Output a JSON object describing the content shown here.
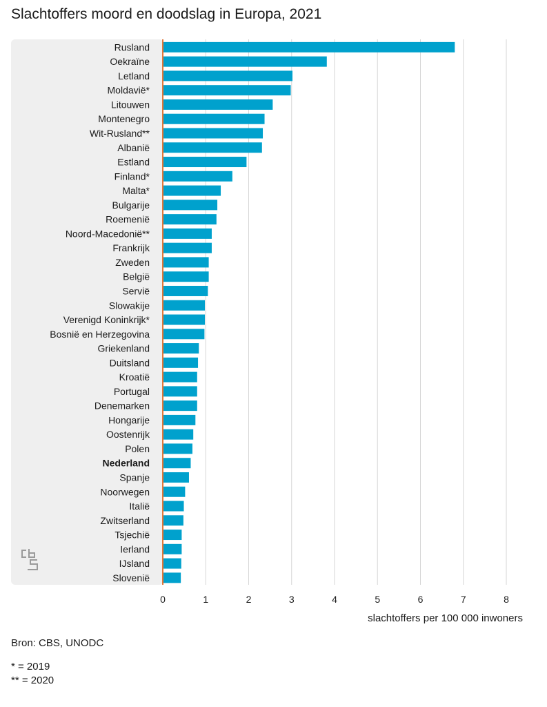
{
  "title": "Slachtoffers moord en doodslag in Europa, 2021",
  "source": "Bron: CBS, UNODC",
  "notes": [
    "* = 2019",
    "** = 2020"
  ],
  "logo": "cbs-logo-icon",
  "colors": {
    "bar": "#00a1cd",
    "panel": "#efefef",
    "axis": "#e0783a",
    "grid": "#d6d6d6"
  },
  "chart_data": {
    "type": "bar",
    "orientation": "horizontal",
    "title": "Slachtoffers moord en doodslag in Europa, 2021",
    "xlabel": "slachtoffers per 100 000 inwoners",
    "ylabel": "",
    "xlim": [
      0,
      8
    ],
    "xticks": [
      0,
      1,
      2,
      3,
      4,
      5,
      6,
      7,
      8
    ],
    "grid": true,
    "highlight": "Nederland",
    "categories": [
      "Rusland",
      "Oekraïne",
      "Letland",
      "Moldavië*",
      "Litouwen",
      "Montenegro",
      "Wit-Rusland**",
      "Albanië",
      "Estland",
      "Finland*",
      "Malta*",
      "Bulgarije",
      "Roemenië",
      "Noord-Macedonië**",
      "Frankrijk",
      "Zweden",
      "België",
      "Servië",
      "Slowakije",
      "Verenigd Koninkrijk*",
      "Bosnië en Herzegovina",
      "Griekenland",
      "Duitsland",
      "Kroatië",
      "Portugal",
      "Denemarken",
      "Hongarije",
      "Oostenrijk",
      "Polen",
      "Nederland",
      "Spanje",
      "Noorwegen",
      "Italië",
      "Zwitserland",
      "Tsjechië",
      "Ierland",
      "IJsland",
      "Slovenië"
    ],
    "values": [
      6.8,
      3.82,
      3.02,
      2.98,
      2.56,
      2.37,
      2.33,
      2.31,
      1.95,
      1.62,
      1.35,
      1.27,
      1.25,
      1.14,
      1.14,
      1.07,
      1.07,
      1.05,
      0.98,
      0.98,
      0.97,
      0.84,
      0.82,
      0.8,
      0.8,
      0.8,
      0.76,
      0.71,
      0.69,
      0.65,
      0.61,
      0.52,
      0.49,
      0.48,
      0.44,
      0.44,
      0.43,
      0.42
    ]
  }
}
